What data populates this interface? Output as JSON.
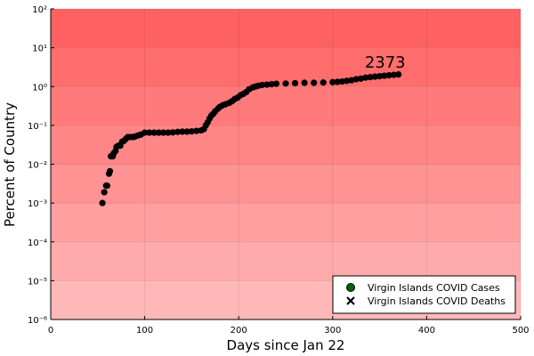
{
  "chart_data": {
    "type": "scatter",
    "title": "",
    "xlabel": "Days since Jan 22",
    "ylabel": "Percent of Country",
    "xlim": [
      0,
      500
    ],
    "ylim_log10": [
      -6,
      2
    ],
    "xscale": "linear",
    "yscale": "log",
    "x_ticks": [
      0,
      100,
      200,
      300,
      400,
      500
    ],
    "y_ticks": [
      {
        "exp": -6,
        "label": "10⁻⁶"
      },
      {
        "exp": -5,
        "label": "10⁻⁵"
      },
      {
        "exp": -4,
        "label": "10⁻⁴"
      },
      {
        "exp": -3,
        "label": "10⁻³"
      },
      {
        "exp": -2,
        "label": "10⁻²"
      },
      {
        "exp": -1,
        "label": "10⁻¹"
      },
      {
        "exp": 0,
        "label": "10⁰"
      },
      {
        "exp": 1,
        "label": "10¹"
      },
      {
        "exp": 2,
        "label": "10²"
      }
    ],
    "background_bands_color": "#ff0000",
    "grid": true,
    "annotation": {
      "text": "2373",
      "x": 370,
      "y": 2.0
    },
    "legend": {
      "position": "bottom-right",
      "entries": [
        {
          "label": "Virgin Islands COVID Cases",
          "marker": "circle",
          "color": "#006400"
        },
        {
          "label": "Virgin Islands COVID Deaths",
          "marker": "x",
          "color": "#000000"
        }
      ]
    },
    "series": [
      {
        "name": "Virgin Islands COVID Cases",
        "marker": "circle",
        "color": "#000000",
        "x": [
          55,
          57,
          59,
          60,
          62,
          63,
          64,
          66,
          67,
          69,
          70,
          72,
          74,
          76,
          78,
          80,
          82,
          85,
          88,
          90,
          93,
          96,
          100,
          105,
          110,
          115,
          120,
          125,
          130,
          135,
          140,
          145,
          150,
          155,
          160,
          163,
          165,
          167,
          169,
          171,
          173,
          175,
          178,
          180,
          183,
          186,
          190,
          193,
          196,
          199,
          202,
          205,
          208,
          211,
          215,
          218,
          221,
          225,
          230,
          235,
          240,
          250,
          260,
          270,
          280,
          290,
          300,
          305,
          310,
          315,
          320,
          325,
          330,
          335,
          340,
          345,
          350,
          355,
          360,
          365,
          370
        ],
        "y": [
          0.001,
          0.0019,
          0.0028,
          0.0028,
          0.0057,
          0.0066,
          0.016,
          0.016,
          0.019,
          0.022,
          0.028,
          0.03,
          0.03,
          0.038,
          0.04,
          0.045,
          0.05,
          0.05,
          0.05,
          0.052,
          0.055,
          0.058,
          0.065,
          0.065,
          0.065,
          0.065,
          0.065,
          0.065,
          0.066,
          0.068,
          0.069,
          0.069,
          0.07,
          0.072,
          0.074,
          0.08,
          0.1,
          0.12,
          0.15,
          0.18,
          0.2,
          0.23,
          0.27,
          0.3,
          0.33,
          0.35,
          0.38,
          0.42,
          0.48,
          0.52,
          0.6,
          0.65,
          0.72,
          0.85,
          0.95,
          1.0,
          1.05,
          1.1,
          1.12,
          1.15,
          1.18,
          1.2,
          1.22,
          1.25,
          1.25,
          1.27,
          1.3,
          1.32,
          1.35,
          1.4,
          1.45,
          1.55,
          1.6,
          1.7,
          1.75,
          1.8,
          1.85,
          1.9,
          1.95,
          2.0,
          2.05
        ]
      },
      {
        "name": "Virgin Islands COVID Deaths",
        "marker": "x",
        "color": "#000000",
        "x": [],
        "y": []
      }
    ]
  }
}
